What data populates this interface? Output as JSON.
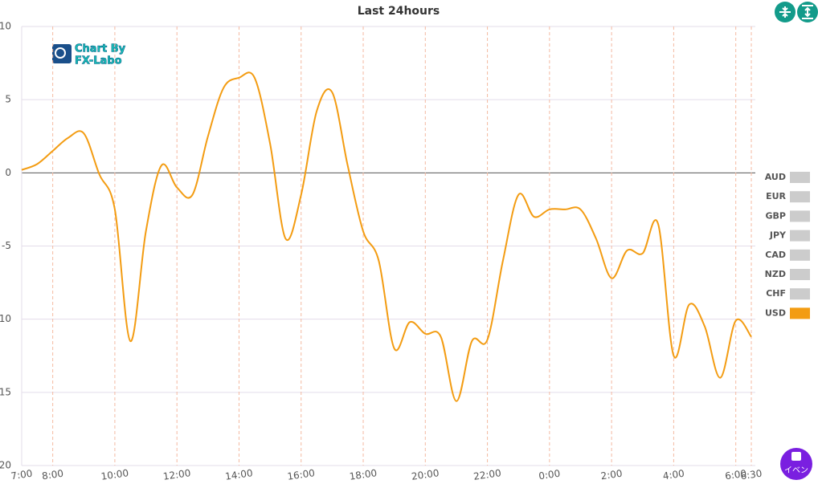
{
  "chart_data": {
    "type": "line",
    "title": "Last 24hours",
    "categories": [
      "7:00",
      null,
      "8:00",
      null,
      null,
      null,
      "10:00",
      null,
      null,
      null,
      "12:00",
      null,
      null,
      null,
      "14:00",
      null,
      null,
      null,
      "16:00",
      null,
      null,
      null,
      "18:00",
      null,
      null,
      null,
      "20:00",
      null,
      null,
      null,
      "22:00",
      null,
      null,
      null,
      "0:00",
      null,
      null,
      null,
      "2:00",
      null,
      null,
      null,
      "4:00",
      null,
      null,
      null,
      "6:00",
      "6:30"
    ],
    "series": [
      {
        "name": "USD",
        "color": "#f39c12",
        "values": [
          0.2,
          0.6,
          1.5,
          2.4,
          2.7,
          -0.1,
          -2.5,
          -11.5,
          -4,
          0.5,
          -1.0,
          -1.5,
          2.5,
          5.8,
          6.5,
          6.5,
          2,
          -4.5,
          -1.5,
          4.2,
          5.5,
          0.5,
          -4,
          -6,
          -12,
          -10.2,
          -11,
          -11.2,
          -15.6,
          -11.5,
          -11.4,
          -6,
          -1.5,
          -3,
          -2.5,
          -2.5,
          -2.5,
          -4.5,
          -7.2,
          -5.3,
          -5.5,
          -3.5,
          -12.5,
          -9,
          -10.5,
          -14,
          -10.1,
          -11.2
        ]
      }
    ],
    "legend": [
      {
        "name": "AUD",
        "color": "#cccccc"
      },
      {
        "name": "EUR",
        "color": "#cccccc"
      },
      {
        "name": "GBP",
        "color": "#cccccc"
      },
      {
        "name": "JPY",
        "color": "#cccccc"
      },
      {
        "name": "CAD",
        "color": "#cccccc"
      },
      {
        "name": "NZD",
        "color": "#cccccc"
      },
      {
        "name": "CHF",
        "color": "#cccccc"
      },
      {
        "name": "USD",
        "color": "#f39c12"
      }
    ],
    "legend_position": "right",
    "ylim": [
      -20,
      10
    ],
    "yticks": [
      {
        "value": -20,
        "label": "20"
      },
      {
        "value": -15,
        "label": "15"
      },
      {
        "value": -10,
        "label": "10"
      },
      -5,
      0,
      5,
      10
    ],
    "grid": true
  },
  "ui": {
    "logo_line1": "Chart By",
    "logo_line2": "FX-Labo",
    "event_button": "イベン"
  }
}
